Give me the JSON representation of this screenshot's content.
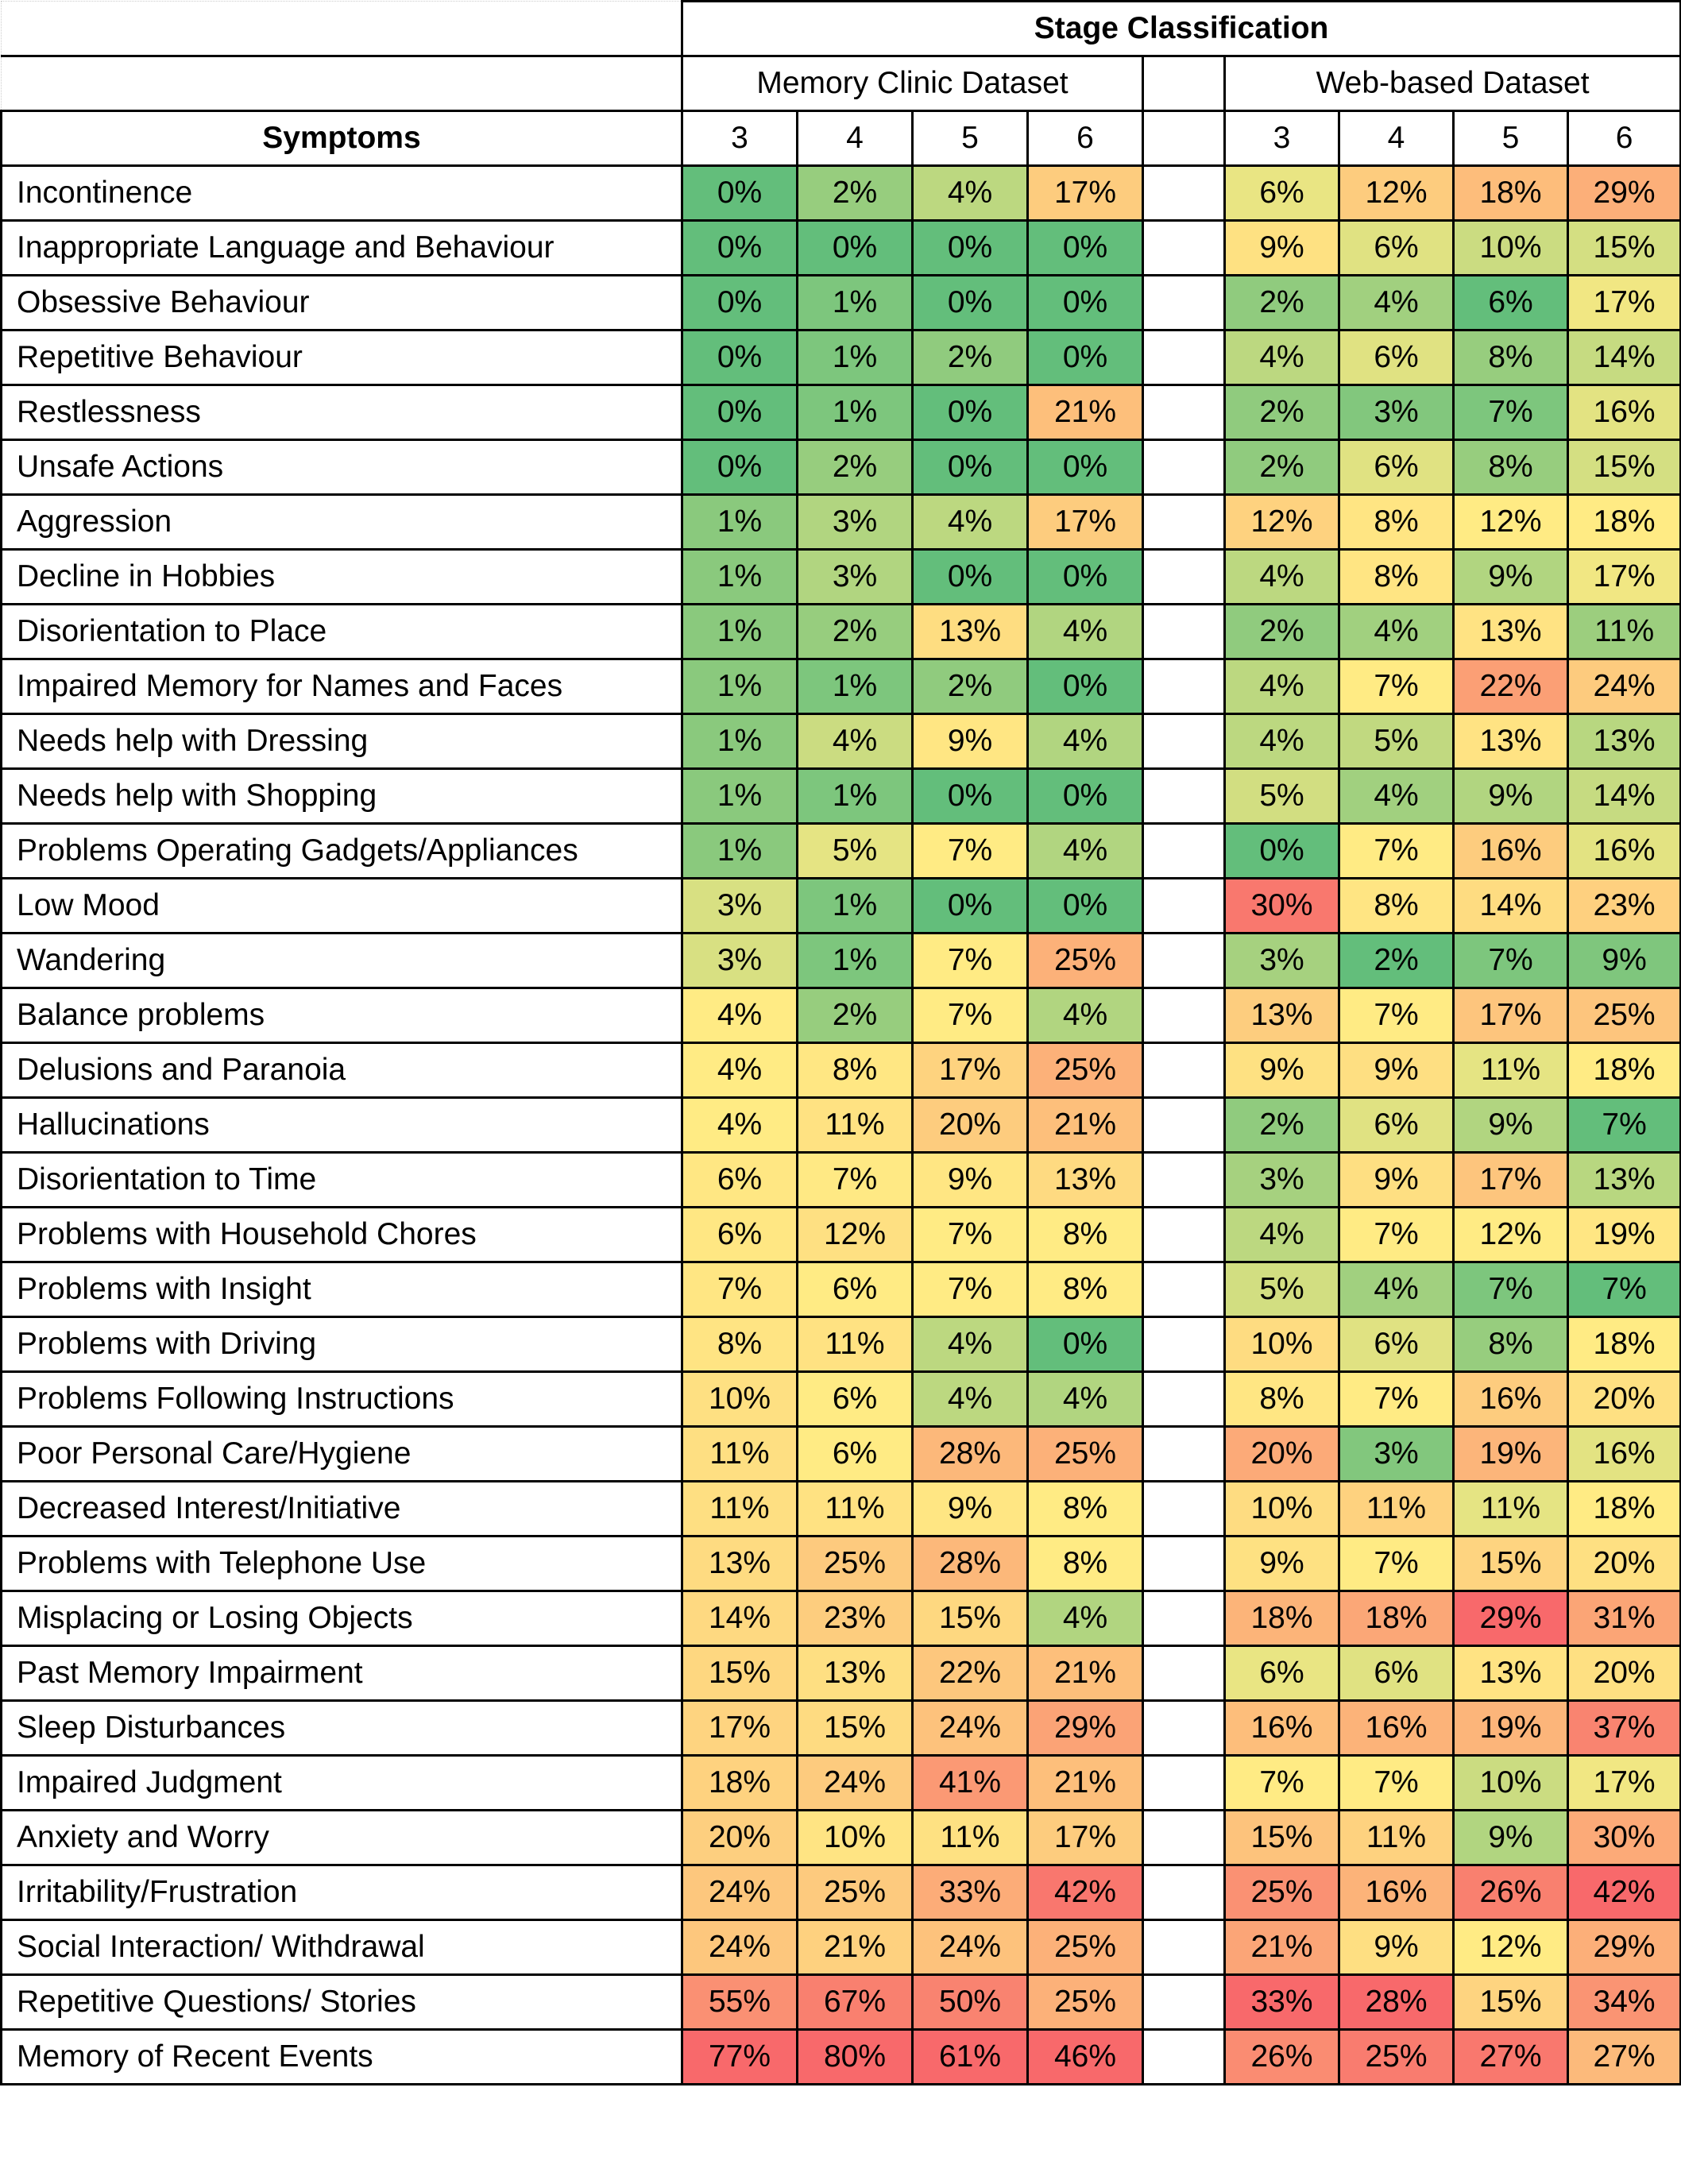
{
  "header": {
    "title": "Stage Classification",
    "groups": [
      "Memory Clinic Dataset",
      "Web-based Dataset"
    ],
    "symptoms_label": "Symptoms",
    "stages": [
      "3",
      "4",
      "5",
      "6"
    ]
  },
  "colors": {
    "low": "#63BE7B",
    "mid": "#FFEB84",
    "high": "#F8696B"
  },
  "rows": [
    {
      "symptom": "Incontinence",
      "memory": [
        "0%",
        "2%",
        "4%",
        "17%"
      ],
      "web": [
        "6%",
        "12%",
        "18%",
        "29%"
      ]
    },
    {
      "symptom": "Inappropriate Language and Behaviour",
      "memory": [
        "0%",
        "0%",
        "0%",
        "0%"
      ],
      "web": [
        "9%",
        "6%",
        "10%",
        "15%"
      ]
    },
    {
      "symptom": "Obsessive Behaviour",
      "memory": [
        "0%",
        "1%",
        "0%",
        "0%"
      ],
      "web": [
        "2%",
        "4%",
        "6%",
        "17%"
      ]
    },
    {
      "symptom": "Repetitive Behaviour",
      "memory": [
        "0%",
        "1%",
        "2%",
        "0%"
      ],
      "web": [
        "4%",
        "6%",
        "8%",
        "14%"
      ]
    },
    {
      "symptom": "Restlessness",
      "memory": [
        "0%",
        "1%",
        "0%",
        "21%"
      ],
      "web": [
        "2%",
        "3%",
        "7%",
        "16%"
      ]
    },
    {
      "symptom": "Unsafe Actions",
      "memory": [
        "0%",
        "2%",
        "0%",
        "0%"
      ],
      "web": [
        "2%",
        "6%",
        "8%",
        "15%"
      ]
    },
    {
      "symptom": "Aggression",
      "memory": [
        "1%",
        "3%",
        "4%",
        "17%"
      ],
      "web": [
        "12%",
        "8%",
        "12%",
        "18%"
      ]
    },
    {
      "symptom": "Decline in Hobbies",
      "memory": [
        "1%",
        "3%",
        "0%",
        "0%"
      ],
      "web": [
        "4%",
        "8%",
        "9%",
        "17%"
      ]
    },
    {
      "symptom": "Disorientation to Place",
      "memory": [
        "1%",
        "2%",
        "13%",
        "4%"
      ],
      "web": [
        "2%",
        "4%",
        "13%",
        "11%"
      ]
    },
    {
      "symptom": "Impaired Memory for Names and Faces",
      "memory": [
        "1%",
        "1%",
        "2%",
        "0%"
      ],
      "web": [
        "4%",
        "7%",
        "22%",
        "24%"
      ]
    },
    {
      "symptom": "Needs help with Dressing",
      "memory": [
        "1%",
        "4%",
        "9%",
        "4%"
      ],
      "web": [
        "4%",
        "5%",
        "13%",
        "13%"
      ]
    },
    {
      "symptom": "Needs help with Shopping",
      "memory": [
        "1%",
        "1%",
        "0%",
        "0%"
      ],
      "web": [
        "5%",
        "4%",
        "9%",
        "14%"
      ]
    },
    {
      "symptom": "Problems Operating Gadgets/Appliances",
      "memory": [
        "1%",
        "5%",
        "7%",
        "4%"
      ],
      "web": [
        "0%",
        "7%",
        "16%",
        "16%"
      ]
    },
    {
      "symptom": "Low Mood",
      "memory": [
        "3%",
        "1%",
        "0%",
        "0%"
      ],
      "web": [
        "30%",
        "8%",
        "14%",
        "23%"
      ]
    },
    {
      "symptom": "Wandering",
      "memory": [
        "3%",
        "1%",
        "7%",
        "25%"
      ],
      "web": [
        "3%",
        "2%",
        "7%",
        "9%"
      ]
    },
    {
      "symptom": "Balance problems",
      "memory": [
        "4%",
        "2%",
        "7%",
        "4%"
      ],
      "web": [
        "13%",
        "7%",
        "17%",
        "25%"
      ]
    },
    {
      "symptom": "Delusions and Paranoia",
      "memory": [
        "4%",
        "8%",
        "17%",
        "25%"
      ],
      "web": [
        "9%",
        "9%",
        "11%",
        "18%"
      ]
    },
    {
      "symptom": "Hallucinations",
      "memory": [
        "4%",
        "11%",
        "20%",
        "21%"
      ],
      "web": [
        "2%",
        "6%",
        "9%",
        "7%"
      ]
    },
    {
      "symptom": "Disorientation to Time",
      "memory": [
        "6%",
        "7%",
        "9%",
        "13%"
      ],
      "web": [
        "3%",
        "9%",
        "17%",
        "13%"
      ]
    },
    {
      "symptom": "Problems with Household Chores",
      "memory": [
        "6%",
        "12%",
        "7%",
        "8%"
      ],
      "web": [
        "4%",
        "7%",
        "12%",
        "19%"
      ]
    },
    {
      "symptom": "Problems with Insight",
      "memory": [
        "7%",
        "6%",
        "7%",
        "8%"
      ],
      "web": [
        "5%",
        "4%",
        "7%",
        "7%"
      ]
    },
    {
      "symptom": "Problems with Driving",
      "memory": [
        "8%",
        "11%",
        "4%",
        "0%"
      ],
      "web": [
        "10%",
        "6%",
        "8%",
        "18%"
      ]
    },
    {
      "symptom": "Problems Following Instructions",
      "memory": [
        "10%",
        "6%",
        "4%",
        "4%"
      ],
      "web": [
        "8%",
        "7%",
        "16%",
        "20%"
      ]
    },
    {
      "symptom": "Poor Personal Care/Hygiene",
      "memory": [
        "11%",
        "6%",
        "28%",
        "25%"
      ],
      "web": [
        "20%",
        "3%",
        "19%",
        "16%"
      ]
    },
    {
      "symptom": "Decreased Interest/Initiative",
      "memory": [
        "11%",
        "11%",
        "9%",
        "8%"
      ],
      "web": [
        "10%",
        "11%",
        "11%",
        "18%"
      ]
    },
    {
      "symptom": "Problems with Telephone Use",
      "memory": [
        "13%",
        "25%",
        "28%",
        "8%"
      ],
      "web": [
        "9%",
        "7%",
        "15%",
        "20%"
      ]
    },
    {
      "symptom": "Misplacing or Losing Objects",
      "memory": [
        "14%",
        "23%",
        "15%",
        "4%"
      ],
      "web": [
        "18%",
        "18%",
        "29%",
        "31%"
      ]
    },
    {
      "symptom": "Past Memory Impairment",
      "memory": [
        "15%",
        "13%",
        "22%",
        "21%"
      ],
      "web": [
        "6%",
        "6%",
        "13%",
        "20%"
      ]
    },
    {
      "symptom": "Sleep Disturbances",
      "memory": [
        "17%",
        "15%",
        "24%",
        "29%"
      ],
      "web": [
        "16%",
        "16%",
        "19%",
        "37%"
      ]
    },
    {
      "symptom": "Impaired Judgment",
      "memory": [
        "18%",
        "24%",
        "41%",
        "21%"
      ],
      "web": [
        "7%",
        "7%",
        "10%",
        "17%"
      ]
    },
    {
      "symptom": "Anxiety and Worry",
      "memory": [
        "20%",
        "10%",
        "11%",
        "17%"
      ],
      "web": [
        "15%",
        "11%",
        "9%",
        "30%"
      ]
    },
    {
      "symptom": "Irritability/Frustration",
      "memory": [
        "24%",
        "25%",
        "33%",
        "42%"
      ],
      "web": [
        "25%",
        "16%",
        "26%",
        "42%"
      ]
    },
    {
      "symptom": "Social Interaction/ Withdrawal",
      "memory": [
        "24%",
        "21%",
        "24%",
        "25%"
      ],
      "web": [
        "21%",
        "9%",
        "12%",
        "29%"
      ]
    },
    {
      "symptom": "Repetitive Questions/ Stories",
      "memory": [
        "55%",
        "67%",
        "50%",
        "25%"
      ],
      "web": [
        "33%",
        "28%",
        "15%",
        "34%"
      ]
    },
    {
      "symptom": "Memory of Recent Events",
      "memory": [
        "77%",
        "80%",
        "61%",
        "46%"
      ],
      "web": [
        "26%",
        "25%",
        "27%",
        "27%"
      ]
    }
  ]
}
